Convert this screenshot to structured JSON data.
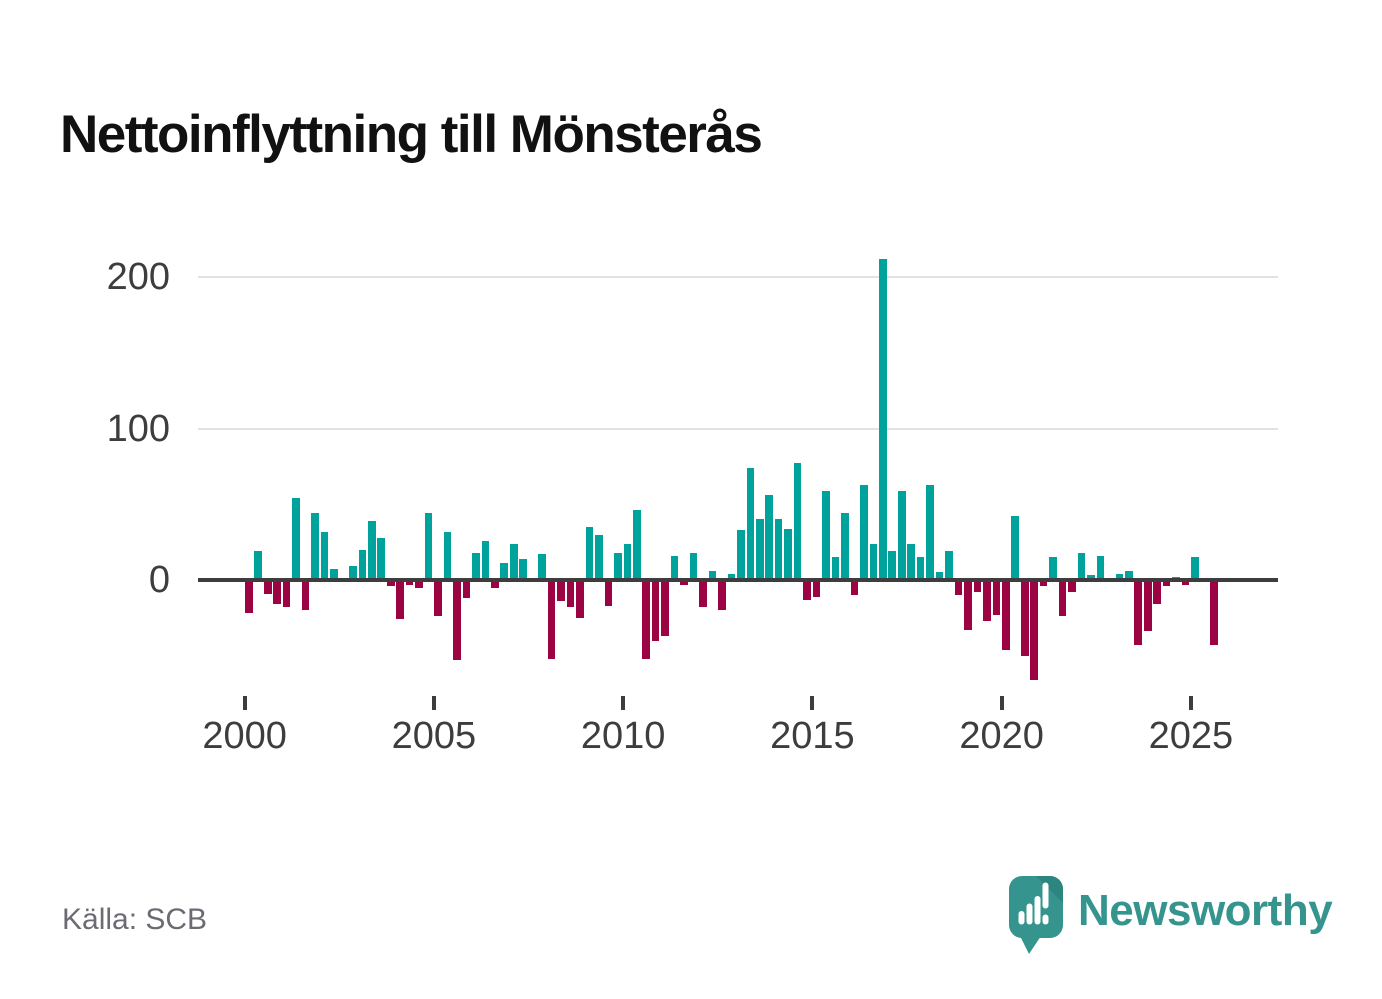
{
  "title": "Nettoinflyttning till Mönsterås",
  "source_label": "Källa: SCB",
  "brand": {
    "wordmark": "Newsworthy"
  },
  "colors": {
    "positive_bar": "#00a39b",
    "negative_bar": "#9b0343",
    "axis": "#3d3d3d",
    "gridline": "#e2e2e2",
    "title_text": "#111111",
    "source_text": "#6b6b74",
    "brand_teal": "#35948e",
    "brand_teal_dark": "#2c867f"
  },
  "chart_data": {
    "type": "bar",
    "frequency": "quarterly",
    "start_year": 2000,
    "start_quarter": 1,
    "start_period": "2000Q1",
    "end_period": "2025Q3",
    "title": "Nettoinflyttning till Mönsterås",
    "xlabel": "",
    "ylabel": "",
    "grid": "horizontal",
    "x_ticks": [
      2000,
      2005,
      2010,
      2015,
      2020,
      2025
    ],
    "x_tick_labels": [
      "2000",
      "2005",
      "2010",
      "2015",
      "2020",
      "2025"
    ],
    "y_ticks": [
      0,
      100,
      200
    ],
    "y_tick_labels": [
      "0",
      "100",
      "200"
    ],
    "ylim": [
      -75,
      230
    ],
    "values": [
      -22,
      19,
      -9,
      -16,
      -18,
      54,
      -20,
      44,
      32,
      7,
      0,
      9,
      20,
      39,
      28,
      -4,
      -26,
      -3,
      -5,
      44,
      -24,
      32,
      -53,
      -12,
      18,
      26,
      -5,
      11,
      24,
      14,
      0,
      17,
      -52,
      -14,
      -18,
      -25,
      35,
      30,
      -17,
      18,
      24,
      46,
      -52,
      -40,
      -37,
      16,
      -3,
      18,
      -18,
      6,
      -20,
      4,
      33,
      74,
      40,
      56,
      40,
      34,
      77,
      -13,
      -11,
      59,
      15,
      44,
      -10,
      63,
      24,
      212,
      19,
      59,
      24,
      15,
      63,
      5,
      19,
      -10,
      -33,
      -8,
      -27,
      -23,
      -46,
      42,
      -50,
      -66,
      -4,
      15,
      -24,
      -8,
      18,
      3,
      16,
      0,
      4,
      6,
      -43,
      -34,
      -16,
      -4,
      2,
      -3,
      15,
      0,
      -43
    ]
  }
}
